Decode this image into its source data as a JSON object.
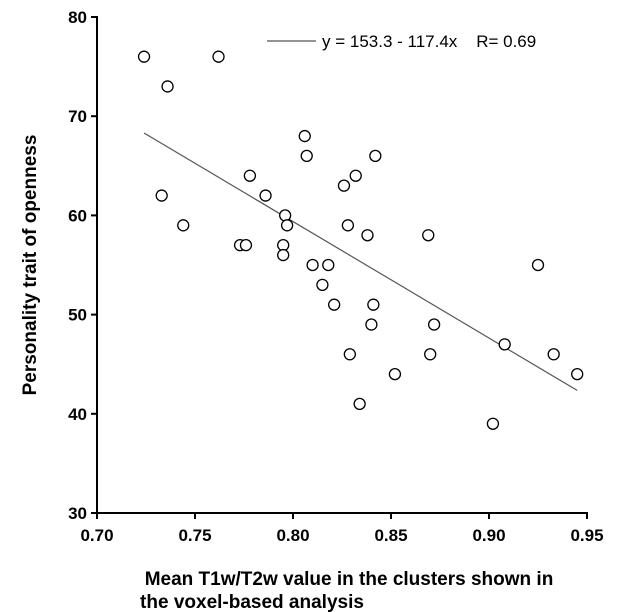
{
  "chart_data": {
    "type": "scatter",
    "xlabel_lines": [
      "Mean T1w/T2w value in the clusters shown in",
      "the voxel-based analysis"
    ],
    "ylabel": "Personality trait of openness",
    "xlim": [
      0.7,
      0.95
    ],
    "ylim": [
      30,
      80
    ],
    "xticks": [
      "0.70",
      "0.75",
      "0.80",
      "0.85",
      "0.90",
      "0.95"
    ],
    "yticks": [
      "30",
      "40",
      "50",
      "60",
      "70",
      "80"
    ],
    "grid": false,
    "legend_position": "top-right",
    "legend_text": "y = 153.3 - 117.4x    R= 0.69",
    "fit_line": {
      "intercept": 153.3,
      "slope": -117.4,
      "x_range": [
        0.724,
        0.945
      ]
    },
    "points": [
      {
        "x": 0.724,
        "y": 76
      },
      {
        "x": 0.733,
        "y": 62
      },
      {
        "x": 0.736,
        "y": 73
      },
      {
        "x": 0.744,
        "y": 59
      },
      {
        "x": 0.762,
        "y": 76
      },
      {
        "x": 0.773,
        "y": 57
      },
      {
        "x": 0.776,
        "y": 57
      },
      {
        "x": 0.778,
        "y": 64
      },
      {
        "x": 0.786,
        "y": 62
      },
      {
        "x": 0.795,
        "y": 57
      },
      {
        "x": 0.795,
        "y": 56
      },
      {
        "x": 0.796,
        "y": 60
      },
      {
        "x": 0.797,
        "y": 59
      },
      {
        "x": 0.806,
        "y": 68
      },
      {
        "x": 0.807,
        "y": 66
      },
      {
        "x": 0.81,
        "y": 55
      },
      {
        "x": 0.815,
        "y": 53
      },
      {
        "x": 0.818,
        "y": 55
      },
      {
        "x": 0.821,
        "y": 51
      },
      {
        "x": 0.826,
        "y": 63
      },
      {
        "x": 0.828,
        "y": 59
      },
      {
        "x": 0.829,
        "y": 46
      },
      {
        "x": 0.832,
        "y": 64
      },
      {
        "x": 0.834,
        "y": 41
      },
      {
        "x": 0.838,
        "y": 58
      },
      {
        "x": 0.84,
        "y": 49
      },
      {
        "x": 0.841,
        "y": 51
      },
      {
        "x": 0.842,
        "y": 66
      },
      {
        "x": 0.852,
        "y": 44
      },
      {
        "x": 0.869,
        "y": 58
      },
      {
        "x": 0.87,
        "y": 46
      },
      {
        "x": 0.872,
        "y": 49
      },
      {
        "x": 0.902,
        "y": 39
      },
      {
        "x": 0.908,
        "y": 47
      },
      {
        "x": 0.925,
        "y": 55
      },
      {
        "x": 0.933,
        "y": 46
      },
      {
        "x": 0.945,
        "y": 44
      }
    ]
  }
}
